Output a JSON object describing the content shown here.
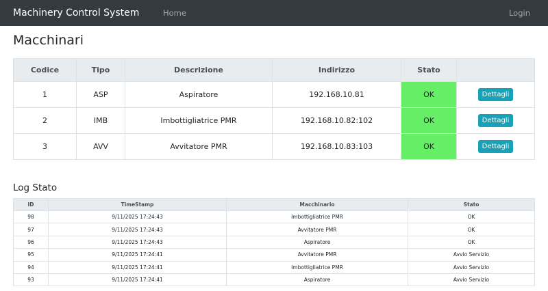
{
  "navbar": {
    "brand": "Machinery Control System",
    "home": "Home",
    "login": "Login"
  },
  "page_title": "Macchinari",
  "machines": {
    "headers": [
      "Codice",
      "Tipo",
      "Descrizione",
      "Indirizzo",
      "Stato",
      ""
    ],
    "rows": [
      {
        "codice": "1",
        "tipo": "ASP",
        "descrizione": "Aspiratore",
        "indirizzo": "192.168.10.81",
        "stato": "OK",
        "action": "Dettagli"
      },
      {
        "codice": "2",
        "tipo": "IMB",
        "descrizione": "Imbottigliatrice PMR",
        "indirizzo": "192.168.10.82:102",
        "stato": "OK",
        "action": "Dettagli"
      },
      {
        "codice": "3",
        "tipo": "AVV",
        "descrizione": "Avvitatore PMR",
        "indirizzo": "192.168.10.83:103",
        "stato": "OK",
        "action": "Dettagli"
      }
    ],
    "status_ok_color": "#66ee66",
    "button_color": "#17a2b8"
  },
  "log": {
    "title": "Log Stato",
    "headers": [
      "ID",
      "TimeStamp",
      "Macchinario",
      "Stato"
    ],
    "rows": [
      {
        "id": "98",
        "timestamp": "9/11/2025 17:24:43",
        "macchinario": "Imbottigliatrice PMR",
        "stato": "OK"
      },
      {
        "id": "97",
        "timestamp": "9/11/2025 17:24:43",
        "macchinario": "Avvitatore PMR",
        "stato": "OK"
      },
      {
        "id": "96",
        "timestamp": "9/11/2025 17:24:43",
        "macchinario": "Aspiratore",
        "stato": "OK"
      },
      {
        "id": "95",
        "timestamp": "9/11/2025 17:24:41",
        "macchinario": "Avvitatore PMR",
        "stato": "Avvio Servizio"
      },
      {
        "id": "94",
        "timestamp": "9/11/2025 17:24:41",
        "macchinario": "Imbottigliatrice PMR",
        "stato": "Avvio Servizio"
      },
      {
        "id": "93",
        "timestamp": "9/11/2025 17:24:41",
        "macchinario": "Aspiratore",
        "stato": "Avvio Servizio"
      }
    ]
  }
}
